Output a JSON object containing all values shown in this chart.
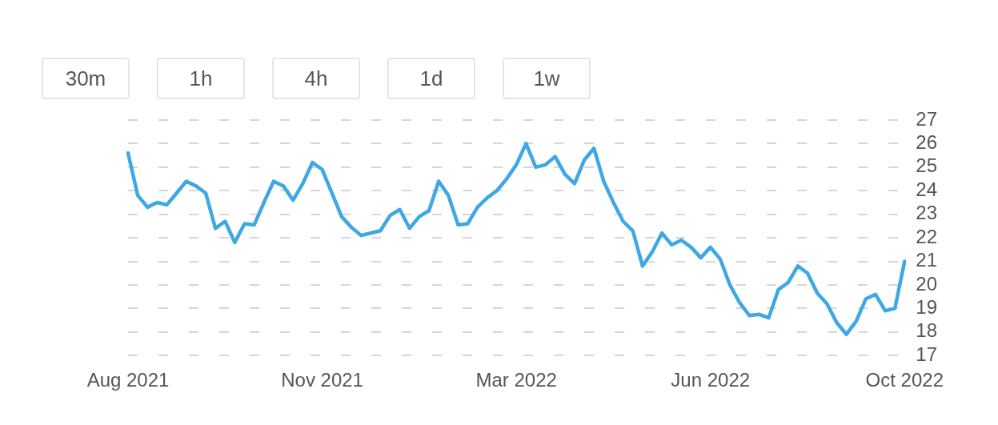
{
  "chart_data": {
    "type": "line",
    "categories": [
      "Aug 2021",
      null,
      null,
      null,
      null,
      null,
      null,
      null,
      null,
      null,
      null,
      null,
      null,
      null,
      null,
      null,
      null,
      null,
      null,
      null,
      "Nov 2021",
      null,
      null,
      null,
      null,
      null,
      null,
      null,
      null,
      null,
      null,
      null,
      null,
      null,
      null,
      null,
      null,
      null,
      null,
      null,
      "Mar 2022",
      null,
      null,
      null,
      null,
      null,
      null,
      null,
      null,
      null,
      null,
      null,
      null,
      null,
      null,
      null,
      null,
      null,
      null,
      null,
      "Jun 2022",
      null,
      null,
      null,
      null,
      null,
      null,
      null,
      null,
      null,
      null,
      null,
      null,
      null,
      null,
      null,
      null,
      null,
      null,
      null,
      "Oct 2022"
    ],
    "series": [
      {
        "color": "#3ea8e5",
        "values": [
          25.6,
          23.8,
          23.3,
          23.5,
          23.4,
          23.9,
          24.4,
          24.2,
          23.9,
          22.4,
          22.7,
          21.8,
          22.6,
          22.55,
          23.5,
          24.4,
          24.2,
          23.6,
          24.3,
          25.2,
          24.9,
          23.9,
          22.9,
          22.45,
          22.1,
          22.2,
          22.3,
          22.95,
          23.2,
          22.4,
          22.9,
          23.15,
          24.4,
          23.8,
          22.55,
          22.6,
          23.3,
          23.7,
          24.0,
          24.5,
          25.1,
          26.0,
          25.0,
          25.1,
          25.45,
          24.7,
          24.3,
          25.3,
          25.8,
          24.4,
          23.5,
          22.7,
          22.3,
          20.8,
          21.4,
          22.2,
          21.7,
          21.9,
          21.6,
          21.15,
          21.6,
          21.1,
          20.0,
          19.25,
          18.7,
          18.75,
          18.6,
          19.8,
          20.1,
          20.8,
          20.5,
          19.65,
          19.2,
          18.4,
          17.9,
          18.45,
          19.4,
          19.6,
          18.9,
          19.0,
          21.0
        ]
      }
    ],
    "ylim": [
      17,
      27
    ],
    "yticks": [
      17,
      18,
      19,
      20,
      21,
      22,
      23,
      24,
      25,
      26,
      27
    ],
    "grid": "y",
    "marker": "none",
    "line_style": "solid",
    "legend": false,
    "annotations": [
      "30m",
      "1h",
      "4h",
      "1d",
      "1w"
    ]
  }
}
